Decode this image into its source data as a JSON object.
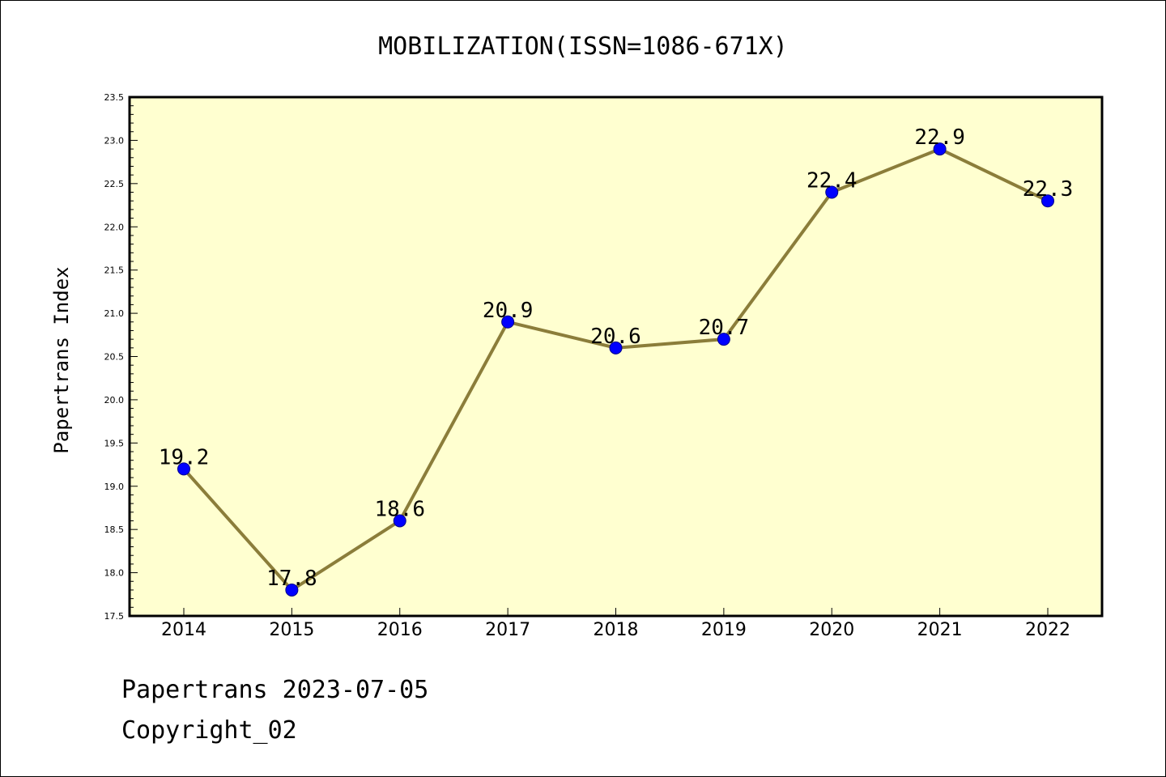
{
  "chart_data": {
    "type": "line",
    "title": "MOBILIZATION(ISSN=1086-671X)",
    "ylabel": "Papertrans Index",
    "xlabel": "",
    "categories": [
      "2014",
      "2015",
      "2016",
      "2017",
      "2018",
      "2019",
      "2020",
      "2021",
      "2022"
    ],
    "values": [
      19.2,
      17.8,
      18.6,
      20.9,
      20.6,
      20.7,
      22.4,
      22.9,
      22.3
    ],
    "data_labels": [
      "19.2",
      "17.8",
      "18.6",
      "20.9",
      "20.6",
      "20.7",
      "22.4",
      "22.9",
      "22.3"
    ],
    "ylim": [
      17.5,
      23.5
    ],
    "yticks": [
      "17.5",
      "18.0",
      "18.5",
      "19.0",
      "19.5",
      "20.0",
      "20.5",
      "21.0",
      "21.5",
      "22.0",
      "22.5",
      "23.0",
      "23.5"
    ],
    "grid": false,
    "legend": "none",
    "colors": {
      "plot_background": "#ffffd0",
      "line": "#8b7d3a",
      "marker": "#0000ff",
      "marker_edge": "#00008b"
    }
  },
  "footer": {
    "line1": "Papertrans 2023-07-05",
    "line2": "Copyright_02"
  }
}
